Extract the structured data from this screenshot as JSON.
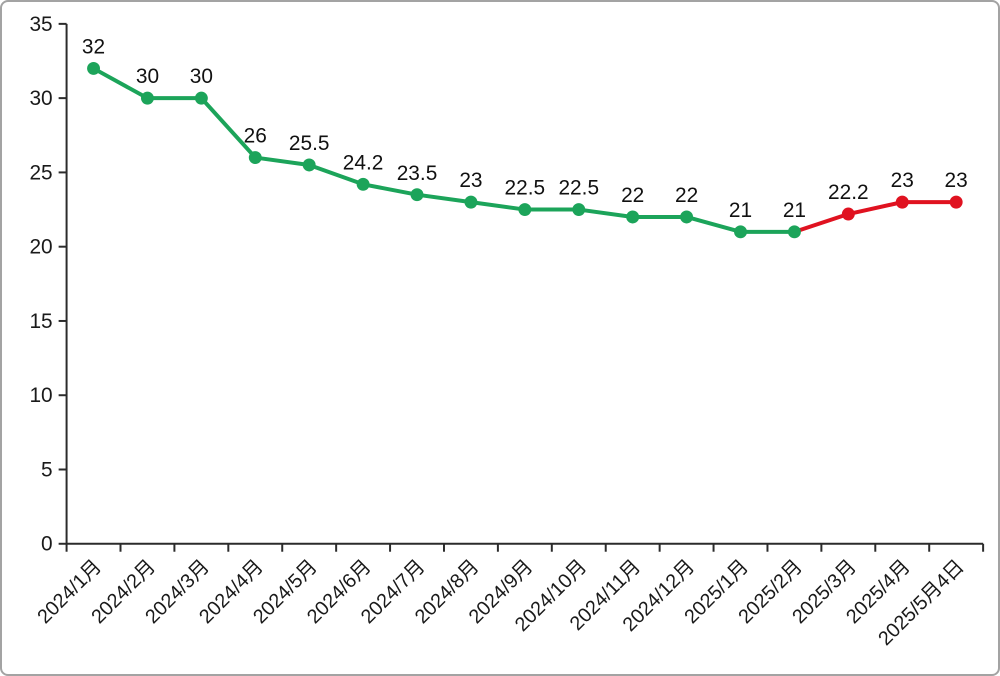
{
  "frame": {
    "background": "#ffffff",
    "border_color": "#a3a3a3"
  },
  "chart_data": {
    "type": "line",
    "title": "",
    "xlabel": "",
    "ylabel": "",
    "categories": [
      "2024/1月",
      "2024/2月",
      "2024/3月",
      "2024/4月",
      "2024/5月",
      "2024/6月",
      "2024/7月",
      "2024/8月",
      "2024/9月",
      "2024/10月",
      "2024/11月",
      "2024/12月",
      "2025/1月",
      "2025/2月",
      "2025/3月",
      "2025/4月",
      "2025/5月4日"
    ],
    "values": [
      32,
      30,
      30,
      26,
      25.5,
      24.2,
      23.5,
      23,
      22.5,
      22.5,
      22,
      22,
      21,
      21,
      22.2,
      23,
      23
    ],
    "point_labels": [
      "32",
      "30",
      "30",
      "26",
      "25.5",
      "24.2",
      "23.5",
      "23",
      "22.5",
      "22.5",
      "22",
      "22",
      "21",
      "21",
      "22.2",
      "23",
      "23"
    ],
    "segments": [
      {
        "name": "series-green",
        "color": "#1CA45A",
        "from": 0,
        "to": 13
      },
      {
        "name": "series-red",
        "color": "#E01220",
        "from": 13,
        "to": 16
      }
    ],
    "y_ticks": [
      0,
      5,
      10,
      15,
      20,
      25,
      30,
      35
    ],
    "ylim": [
      0,
      35
    ],
    "grid": false,
    "legend": false,
    "axis_color": "#2b2b2b",
    "text_color": "#1a1a1a"
  }
}
